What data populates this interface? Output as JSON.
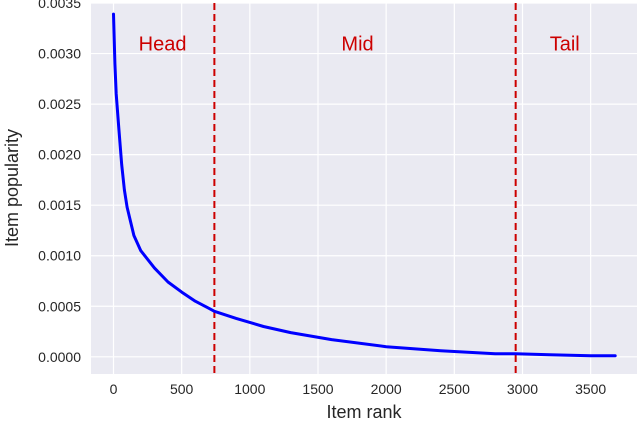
{
  "chart_data": {
    "type": "line",
    "xlabel": "Item rank",
    "ylabel": "Item popularity",
    "xlim": [
      -165,
      3840
    ],
    "ylim": [
      -0.00017,
      0.0035
    ],
    "xticks": [
      0,
      500,
      1000,
      1500,
      2000,
      2500,
      3000,
      3500
    ],
    "xtick_labels": [
      "0",
      "500",
      "1000",
      "1500",
      "2000",
      "2500",
      "3000",
      "3500"
    ],
    "yticks": [
      0.0,
      0.0005,
      0.001,
      0.0015,
      0.002,
      0.0025,
      0.003,
      0.0035
    ],
    "ytick_labels": [
      "0.0000",
      "0.0005",
      "0.0010",
      "0.0015",
      "0.0020",
      "0.0025",
      "0.0030",
      "0.0035"
    ],
    "grid": true,
    "background_color": "#eaeaf2",
    "series": [
      {
        "color": "#0000ff",
        "x": [
          0,
          10,
          20,
          40,
          60,
          80,
          100,
          150,
          200,
          300,
          400,
          500,
          600,
          700,
          740,
          900,
          1100,
          1300,
          1600,
          2000,
          2400,
          2800,
          2950,
          3200,
          3500,
          3680
        ],
        "y": [
          0.00339,
          0.0029,
          0.0026,
          0.00225,
          0.0019,
          0.00165,
          0.00148,
          0.0012,
          0.00105,
          0.00088,
          0.00074,
          0.00064,
          0.00055,
          0.00048,
          0.00045,
          0.00038,
          0.0003,
          0.00024,
          0.00017,
          0.0001,
          6e-05,
          3e-05,
          3e-05,
          2e-05,
          1e-05,
          1e-05
        ]
      }
    ],
    "dividers": {
      "color": "#cc0000",
      "x": [
        740,
        2950
      ]
    },
    "regions": [
      {
        "label": "Head",
        "x": 360,
        "y": 0.0031
      },
      {
        "label": "Mid",
        "x": 1790,
        "y": 0.0031
      },
      {
        "label": "Tail",
        "x": 3310,
        "y": 0.0031
      }
    ]
  }
}
